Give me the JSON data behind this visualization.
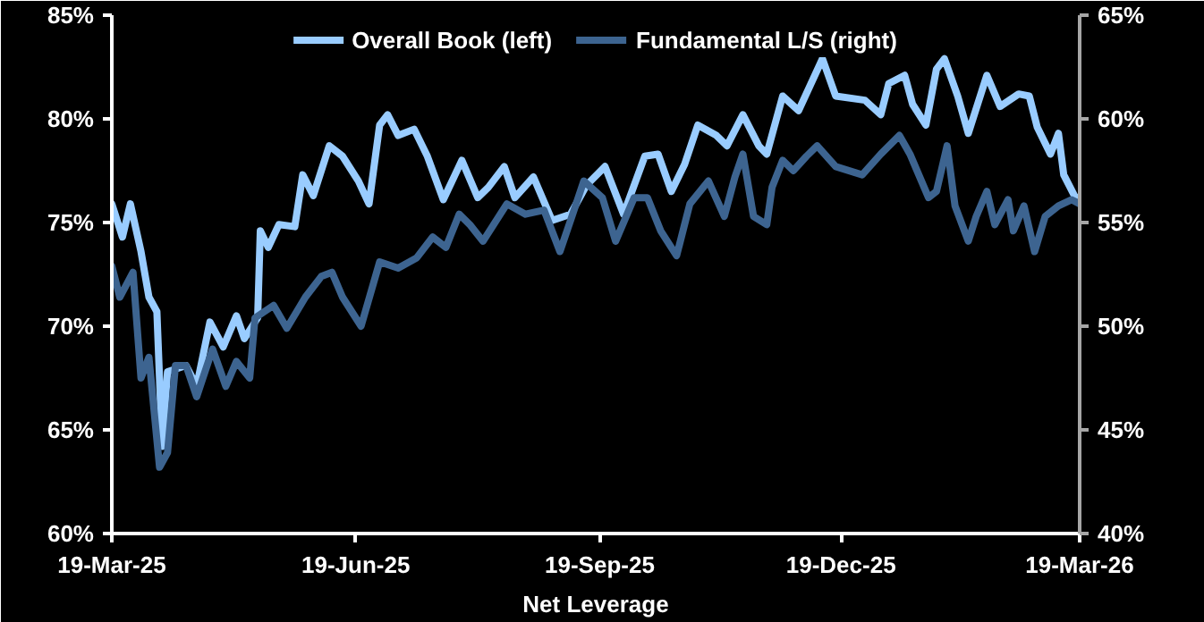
{
  "chart_data": {
    "type": "line",
    "xlabel": "Net Leverage",
    "legend": "top",
    "grid": false,
    "line_style": "solid",
    "marker": "none",
    "xlim": [
      "2025-03-19",
      "2026-03-19"
    ],
    "xticks": [
      {
        "value": "2025-03-19",
        "label": "19-Mar-25"
      },
      {
        "value": "2025-06-19",
        "label": "19-Jun-25"
      },
      {
        "value": "2025-09-19",
        "label": "19-Sep-25"
      },
      {
        "value": "2025-12-19",
        "label": "19-Dec-25"
      },
      {
        "value": "2026-03-19",
        "label": "19-Mar-26"
      }
    ],
    "ylim": [
      60,
      85
    ],
    "yticks": [
      {
        "value": 60,
        "label": "60%"
      },
      {
        "value": 65,
        "label": "65%"
      },
      {
        "value": 70,
        "label": "70%"
      },
      {
        "value": 75,
        "label": "75%"
      },
      {
        "value": 80,
        "label": "80%"
      },
      {
        "value": 85,
        "label": "85%"
      }
    ],
    "y2lim": [
      40,
      65
    ],
    "y2ticks": [
      {
        "value": 40,
        "label": "40%"
      },
      {
        "value": 45,
        "label": "45%"
      },
      {
        "value": 50,
        "label": "50%"
      },
      {
        "value": 55,
        "label": "55%"
      },
      {
        "value": 60,
        "label": "60%"
      },
      {
        "value": 65,
        "label": "65%"
      }
    ],
    "series": [
      {
        "name": "Overall Book (left)",
        "color": "#99ccff",
        "axis": "y",
        "x": [
          "2025-03-19",
          "2025-03-23",
          "2025-03-26",
          "2025-03-30",
          "2025-04-02",
          "2025-04-05",
          "2025-04-07",
          "2025-04-09",
          "2025-04-16",
          "2025-04-20",
          "2025-04-25",
          "2025-04-30",
          "2025-05-05",
          "2025-05-08",
          "2025-05-13",
          "2025-05-14",
          "2025-05-17",
          "2025-05-21",
          "2025-05-27",
          "2025-05-30",
          "2025-06-03",
          "2025-06-09",
          "2025-06-14",
          "2025-06-20",
          "2025-06-24",
          "2025-06-28",
          "2025-07-01",
          "2025-07-05",
          "2025-07-11",
          "2025-07-16",
          "2025-07-22",
          "2025-07-29",
          "2025-08-04",
          "2025-08-08",
          "2025-08-14",
          "2025-08-18",
          "2025-08-25",
          "2025-09-01",
          "2025-09-08",
          "2025-09-14",
          "2025-09-21",
          "2025-09-28",
          "2025-10-06",
          "2025-10-11",
          "2025-10-16",
          "2025-10-21",
          "2025-10-26",
          "2025-11-02",
          "2025-11-06",
          "2025-11-12",
          "2025-11-18",
          "2025-11-21",
          "2025-11-27",
          "2025-12-03",
          "2025-12-12",
          "2025-12-17",
          "2025-12-28",
          "2026-01-03",
          "2026-01-06",
          "2026-01-12",
          "2026-01-15",
          "2026-01-20",
          "2026-01-24",
          "2026-01-27",
          "2026-02-01",
          "2026-02-05",
          "2026-02-12",
          "2026-02-17",
          "2026-02-24",
          "2026-02-28",
          "2026-03-03",
          "2026-03-08",
          "2026-03-11",
          "2026-03-13",
          "2026-03-17",
          "2026-03-19"
        ],
        "values": [
          75.9,
          74.3,
          75.9,
          73.6,
          71.4,
          70.7,
          64.2,
          67.8,
          68.1,
          67.1,
          70.2,
          69.0,
          70.5,
          69.4,
          70.4,
          74.6,
          73.8,
          74.9,
          74.8,
          77.3,
          76.3,
          78.7,
          78.2,
          77.0,
          75.9,
          79.7,
          80.2,
          79.2,
          79.5,
          78.2,
          76.1,
          78.0,
          76.2,
          76.7,
          77.7,
          76.2,
          77.2,
          75.1,
          75.4,
          76.8,
          77.7,
          75.4,
          78.2,
          78.3,
          76.5,
          77.8,
          79.7,
          79.2,
          78.7,
          80.2,
          78.7,
          78.3,
          81.1,
          80.4,
          82.9,
          81.1,
          80.9,
          80.2,
          81.7,
          82.1,
          80.7,
          79.7,
          82.4,
          82.9,
          81.1,
          79.3,
          82.1,
          80.6,
          81.2,
          81.1,
          79.6,
          78.3,
          79.3,
          77.3,
          76.3,
          76.1
        ]
      },
      {
        "name": "Fundamental L/S (right)",
        "color": "#3d6490",
        "axis": "y2",
        "x": [
          "2025-03-19",
          "2025-03-22",
          "2025-03-27",
          "2025-03-30",
          "2025-04-02",
          "2025-04-06",
          "2025-04-09",
          "2025-04-12",
          "2025-04-16",
          "2025-04-20",
          "2025-04-26",
          "2025-05-01",
          "2025-05-05",
          "2025-05-10",
          "2025-05-12",
          "2025-05-19",
          "2025-05-24",
          "2025-05-31",
          "2025-06-06",
          "2025-06-10",
          "2025-06-14",
          "2025-06-21",
          "2025-06-28",
          "2025-07-05",
          "2025-07-12",
          "2025-07-18",
          "2025-07-23",
          "2025-07-28",
          "2025-08-01",
          "2025-08-06",
          "2025-08-15",
          "2025-08-22",
          "2025-08-29",
          "2025-09-04",
          "2025-09-08",
          "2025-09-13",
          "2025-09-20",
          "2025-09-25",
          "2025-10-02",
          "2025-10-07",
          "2025-10-12",
          "2025-10-18",
          "2025-10-23",
          "2025-10-30",
          "2025-11-05",
          "2025-11-09",
          "2025-11-12",
          "2025-11-16",
          "2025-11-21",
          "2025-11-23",
          "2025-11-27",
          "2025-12-01",
          "2025-12-06",
          "2025-12-10",
          "2025-12-17",
          "2025-12-27",
          "2026-01-03",
          "2026-01-10",
          "2026-01-14",
          "2026-01-21",
          "2026-01-24",
          "2026-01-28",
          "2026-01-31",
          "2026-02-05",
          "2026-02-08",
          "2026-02-12",
          "2026-02-15",
          "2026-02-20",
          "2026-02-22",
          "2026-02-26",
          "2026-03-02",
          "2026-03-06",
          "2026-03-11",
          "2026-03-16",
          "2026-03-19"
        ],
        "values": [
          52.9,
          51.4,
          52.6,
          47.5,
          48.5,
          43.2,
          43.9,
          48.1,
          48.1,
          46.6,
          48.9,
          47.1,
          48.3,
          47.5,
          50.4,
          51.0,
          49.9,
          51.4,
          52.4,
          52.6,
          51.4,
          50.0,
          53.1,
          52.8,
          53.3,
          54.3,
          53.8,
          55.4,
          54.9,
          54.1,
          55.9,
          55.4,
          55.6,
          53.6,
          55.1,
          57.0,
          56.2,
          54.1,
          56.2,
          56.2,
          54.6,
          53.4,
          55.9,
          57.0,
          55.3,
          57.2,
          58.3,
          55.3,
          54.9,
          56.7,
          58.0,
          57.5,
          58.2,
          58.7,
          57.7,
          57.3,
          58.3,
          59.2,
          58.3,
          56.2,
          56.5,
          58.7,
          55.8,
          54.1,
          55.3,
          56.5,
          54.9,
          56.1,
          54.6,
          55.8,
          53.6,
          55.3,
          55.8,
          56.1,
          55.9
        ]
      }
    ]
  }
}
